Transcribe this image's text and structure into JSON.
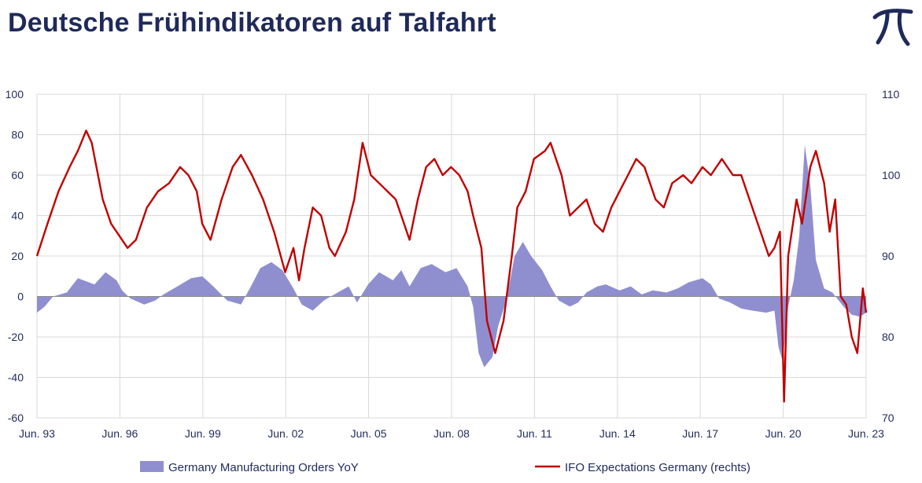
{
  "header": {
    "title": "Deutsche Frühindikatoren auf Talfahrt",
    "logo_icon": "pi-logo-icon",
    "logo_color": "#1f2a5a"
  },
  "chart_data": {
    "type": "area+line",
    "title": "Deutsche Frühindikatoren auf Talfahrt",
    "x_tick_labels": [
      "Jun. 93",
      "Jun. 96",
      "Jun. 99",
      "Jun. 02",
      "Jun. 05",
      "Jun. 08",
      "Jun. 11",
      "Jun. 14",
      "Jun. 17",
      "Jun. 20",
      "Jun. 23"
    ],
    "x_tick_years": [
      1993.42,
      1996.42,
      1999.42,
      2002.42,
      2005.42,
      2008.42,
      2011.42,
      2014.42,
      2017.42,
      2020.42,
      2023.42
    ],
    "xlim": [
      1993.42,
      2023.42
    ],
    "grid": true,
    "legend_position": "bottom",
    "left_axis": {
      "ylim": [
        -60,
        100
      ],
      "ticks": [
        100,
        80,
        60,
        40,
        20,
        0,
        -20,
        -40,
        -60
      ]
    },
    "right_axis": {
      "ylim": [
        70,
        110
      ],
      "ticks": [
        110,
        100,
        90,
        80,
        70
      ]
    },
    "series": [
      {
        "name": "Germany Manufacturing Orders YoY",
        "type": "area",
        "axis": "left",
        "color": "#8f8fd0",
        "points": [
          [
            1993.42,
            -8
          ],
          [
            1993.7,
            -5
          ],
          [
            1994.0,
            0
          ],
          [
            1994.5,
            2
          ],
          [
            1994.9,
            9
          ],
          [
            1995.5,
            6
          ],
          [
            1995.9,
            12
          ],
          [
            1996.3,
            8
          ],
          [
            1996.5,
            3
          ],
          [
            1996.8,
            -1
          ],
          [
            1997.3,
            -4
          ],
          [
            1997.7,
            -2
          ],
          [
            1998.0,
            1
          ],
          [
            1998.5,
            5
          ],
          [
            1999.0,
            9
          ],
          [
            1999.4,
            10
          ],
          [
            1999.8,
            5
          ],
          [
            2000.3,
            -2
          ],
          [
            2000.8,
            -4
          ],
          [
            2001.2,
            6
          ],
          [
            2001.5,
            14
          ],
          [
            2001.9,
            17
          ],
          [
            2002.3,
            13
          ],
          [
            2002.7,
            4
          ],
          [
            2003.0,
            -4
          ],
          [
            2003.4,
            -7
          ],
          [
            2003.8,
            -2
          ],
          [
            2004.3,
            2
          ],
          [
            2004.7,
            5
          ],
          [
            2005.0,
            -3
          ],
          [
            2005.4,
            6
          ],
          [
            2005.8,
            12
          ],
          [
            2006.3,
            8
          ],
          [
            2006.6,
            13
          ],
          [
            2006.9,
            5
          ],
          [
            2007.3,
            14
          ],
          [
            2007.7,
            16
          ],
          [
            2008.2,
            12
          ],
          [
            2008.6,
            14
          ],
          [
            2009.0,
            5
          ],
          [
            2009.2,
            -5
          ],
          [
            2009.4,
            -28
          ],
          [
            2009.6,
            -35
          ],
          [
            2009.9,
            -30
          ],
          [
            2010.1,
            -15
          ],
          [
            2010.4,
            -2
          ],
          [
            2010.7,
            20
          ],
          [
            2011.0,
            27
          ],
          [
            2011.3,
            20
          ],
          [
            2011.7,
            13
          ],
          [
            2012.0,
            5
          ],
          [
            2012.3,
            -2
          ],
          [
            2012.7,
            -5
          ],
          [
            2013.0,
            -3
          ],
          [
            2013.3,
            2
          ],
          [
            2013.7,
            5
          ],
          [
            2014.0,
            6
          ],
          [
            2014.5,
            3
          ],
          [
            2014.9,
            5
          ],
          [
            2015.3,
            1
          ],
          [
            2015.7,
            3
          ],
          [
            2016.2,
            2
          ],
          [
            2016.6,
            4
          ],
          [
            2017.0,
            7
          ],
          [
            2017.5,
            9
          ],
          [
            2017.8,
            6
          ],
          [
            2018.1,
            -1
          ],
          [
            2018.5,
            -3
          ],
          [
            2018.9,
            -6
          ],
          [
            2019.3,
            -7
          ],
          [
            2019.8,
            -8
          ],
          [
            2020.1,
            -7
          ],
          [
            2020.25,
            -25
          ],
          [
            2020.4,
            -32
          ],
          [
            2020.6,
            -5
          ],
          [
            2020.8,
            8
          ],
          [
            2021.0,
            30
          ],
          [
            2021.2,
            75
          ],
          [
            2021.4,
            55
          ],
          [
            2021.6,
            18
          ],
          [
            2021.9,
            4
          ],
          [
            2022.2,
            2
          ],
          [
            2022.6,
            -5
          ],
          [
            2022.9,
            -9
          ],
          [
            2023.2,
            -10
          ],
          [
            2023.42,
            -8
          ]
        ]
      },
      {
        "name": "IFO Expectations Germany (rechts)",
        "type": "line",
        "axis": "right",
        "color": "#c00000",
        "points": [
          [
            1993.42,
            90
          ],
          [
            1993.8,
            94
          ],
          [
            1994.2,
            98
          ],
          [
            1994.6,
            101
          ],
          [
            1994.9,
            103
          ],
          [
            1995.2,
            105.5
          ],
          [
            1995.4,
            104
          ],
          [
            1995.8,
            97
          ],
          [
            1996.1,
            94
          ],
          [
            1996.5,
            92
          ],
          [
            1996.7,
            91
          ],
          [
            1997.0,
            92
          ],
          [
            1997.4,
            96
          ],
          [
            1997.8,
            98
          ],
          [
            1998.2,
            99
          ],
          [
            1998.6,
            101
          ],
          [
            1998.9,
            100
          ],
          [
            1999.2,
            98
          ],
          [
            1999.4,
            94
          ],
          [
            1999.7,
            92
          ],
          [
            2000.1,
            97
          ],
          [
            2000.5,
            101
          ],
          [
            2000.8,
            102.5
          ],
          [
            2001.2,
            100
          ],
          [
            2001.6,
            97
          ],
          [
            2002.0,
            93
          ],
          [
            2002.4,
            88
          ],
          [
            2002.7,
            91
          ],
          [
            2002.9,
            87
          ],
          [
            2003.1,
            91
          ],
          [
            2003.4,
            96
          ],
          [
            2003.7,
            95
          ],
          [
            2004.0,
            91
          ],
          [
            2004.2,
            90
          ],
          [
            2004.6,
            93
          ],
          [
            2004.9,
            97
          ],
          [
            2005.2,
            104
          ],
          [
            2005.5,
            100
          ],
          [
            2005.8,
            99
          ],
          [
            2006.1,
            98
          ],
          [
            2006.4,
            97
          ],
          [
            2006.6,
            95
          ],
          [
            2006.9,
            92
          ],
          [
            2007.2,
            97
          ],
          [
            2007.5,
            101
          ],
          [
            2007.8,
            102
          ],
          [
            2008.1,
            100
          ],
          [
            2008.4,
            101
          ],
          [
            2008.7,
            100
          ],
          [
            2009.0,
            98
          ],
          [
            2009.2,
            95
          ],
          [
            2009.5,
            91
          ],
          [
            2009.7,
            82
          ],
          [
            2010.0,
            78
          ],
          [
            2010.3,
            82
          ],
          [
            2010.6,
            90
          ],
          [
            2010.8,
            96
          ],
          [
            2011.1,
            98
          ],
          [
            2011.4,
            102
          ],
          [
            2011.8,
            103
          ],
          [
            2012.0,
            104
          ],
          [
            2012.4,
            100
          ],
          [
            2012.7,
            95
          ],
          [
            2013.0,
            96
          ],
          [
            2013.3,
            97
          ],
          [
            2013.6,
            94
          ],
          [
            2013.9,
            93
          ],
          [
            2014.2,
            96
          ],
          [
            2014.5,
            98
          ],
          [
            2014.8,
            100
          ],
          [
            2015.1,
            102
          ],
          [
            2015.4,
            101
          ],
          [
            2015.8,
            97
          ],
          [
            2016.1,
            96
          ],
          [
            2016.4,
            99
          ],
          [
            2016.8,
            100
          ],
          [
            2017.1,
            99
          ],
          [
            2017.5,
            101
          ],
          [
            2017.8,
            100
          ],
          [
            2018.2,
            102
          ],
          [
            2018.6,
            100
          ],
          [
            2018.9,
            100
          ],
          [
            2019.2,
            97
          ],
          [
            2019.6,
            93
          ],
          [
            2019.9,
            90
          ],
          [
            2020.1,
            91
          ],
          [
            2020.3,
            93
          ],
          [
            2020.45,
            72
          ],
          [
            2020.6,
            90
          ],
          [
            2020.9,
            97
          ],
          [
            2021.1,
            94
          ],
          [
            2021.4,
            101
          ],
          [
            2021.6,
            103
          ],
          [
            2021.9,
            99
          ],
          [
            2022.1,
            93
          ],
          [
            2022.3,
            97
          ],
          [
            2022.5,
            85
          ],
          [
            2022.7,
            84
          ],
          [
            2022.9,
            80
          ],
          [
            2023.1,
            78
          ],
          [
            2023.3,
            86
          ],
          [
            2023.42,
            83
          ]
        ]
      }
    ]
  }
}
